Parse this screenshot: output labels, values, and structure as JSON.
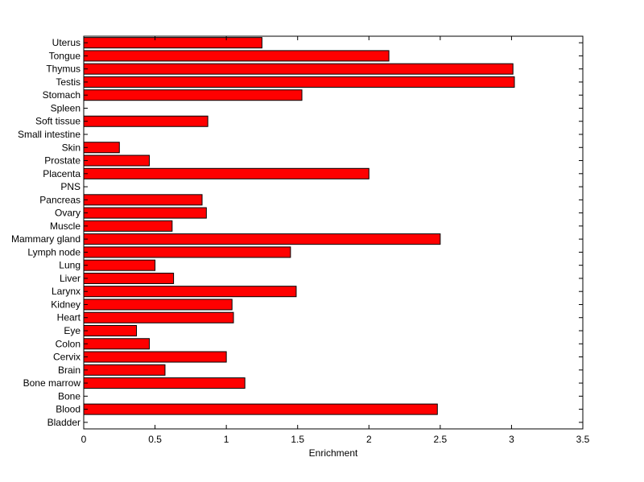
{
  "chart_data": {
    "type": "bar",
    "orientation": "horizontal",
    "categories": [
      "Uterus",
      "Tongue",
      "Thymus",
      "Testis",
      "Stomach",
      "Spleen",
      "Soft tissue",
      "Small intestine",
      "Skin",
      "Prostate",
      "Placenta",
      "PNS",
      "Pancreas",
      "Ovary",
      "Muscle",
      "Mammary gland",
      "Lymph node",
      "Lung",
      "Liver",
      "Larynx",
      "Kidney",
      "Heart",
      "Eye",
      "Colon",
      "Cervix",
      "Brain",
      "Bone marrow",
      "Bone",
      "Blood",
      "Bladder"
    ],
    "values": [
      1.25,
      2.14,
      3.01,
      3.02,
      1.53,
      0,
      0.87,
      0,
      0.25,
      0.46,
      2.0,
      0,
      0.83,
      0.86,
      0.62,
      2.5,
      1.45,
      0.5,
      0.63,
      1.49,
      1.04,
      1.05,
      0.37,
      0.46,
      1.0,
      0.57,
      1.13,
      0,
      2.48,
      0
    ],
    "xlabel": "Enrichment",
    "ylabel": "",
    "title": "",
    "xlim": [
      0,
      3.5
    ],
    "xticks": [
      "0",
      "0.5",
      "1",
      "1.5",
      "2",
      "2.5",
      "3",
      "3.5"
    ],
    "bar_color": "#ff0000",
    "bar_edge_color": "#000000",
    "grid": false,
    "legend": "none"
  }
}
